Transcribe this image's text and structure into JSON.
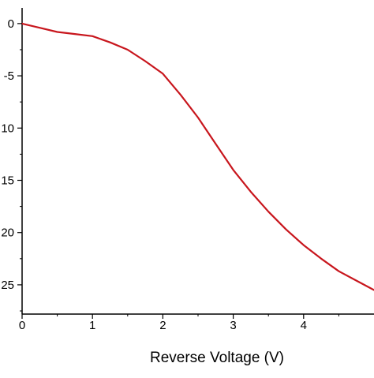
{
  "chart_data": {
    "type": "line",
    "title": "",
    "xlabel": "Reverse Voltage (V)",
    "ylabel": "",
    "xlim": [
      0,
      5
    ],
    "ylim": [
      -27.8,
      1.5
    ],
    "x_ticks": [
      0,
      1,
      2,
      3,
      4
    ],
    "x_tick_labels": [
      "0",
      "1",
      "2",
      "3",
      "4"
    ],
    "y_ticks": [
      0,
      -5,
      -10,
      -15,
      -20,
      -25
    ],
    "y_tick_labels": [
      "0",
      "-5",
      "10",
      "15",
      "20",
      "25"
    ],
    "grid": false,
    "series": [
      {
        "color": "#c8161d",
        "x": [
          0,
          0.25,
          0.5,
          0.75,
          1.0,
          1.25,
          1.5,
          1.75,
          2.0,
          2.25,
          2.5,
          2.75,
          3.0,
          3.25,
          3.5,
          3.75,
          4.0,
          4.25,
          4.5,
          4.75,
          5.0
        ],
        "y": [
          0,
          -0.4,
          -0.8,
          -1.0,
          -1.2,
          -1.8,
          -2.5,
          -3.6,
          -4.8,
          -6.8,
          -9.0,
          -11.5,
          -14.0,
          -16.1,
          -18.0,
          -19.7,
          -21.2,
          -22.5,
          -23.7,
          -24.6,
          -25.5
        ]
      }
    ]
  }
}
